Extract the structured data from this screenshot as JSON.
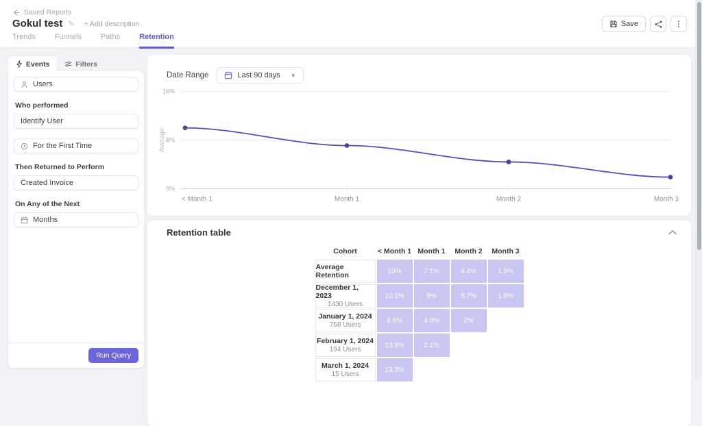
{
  "header": {
    "back_label": "Saved Reports",
    "title": "Gokul test",
    "add_description": "+ Add description",
    "tabs": [
      {
        "label": "Trends",
        "active": false
      },
      {
        "label": "Funnels",
        "active": false
      },
      {
        "label": "Paths",
        "active": false
      },
      {
        "label": "Retention",
        "active": true
      }
    ],
    "save_label": "Save"
  },
  "query_panel": {
    "events_tab": "Events",
    "filters_tab": "Filters",
    "users_label": "Users",
    "who_performed_label": "Who performed",
    "identify_user_value": "Identify User",
    "first_time_value": "For the First Time",
    "then_returned_label": "Then Returned to Perform",
    "return_event_value": "Created Invoice",
    "on_any_label": "On Any of the Next",
    "interval_value": "Months",
    "run_query_label": "Run Query"
  },
  "chart_card": {
    "date_range_label": "Date Range",
    "date_range_value": "Last 90 days"
  },
  "chart_data": {
    "type": "line",
    "ylabel": "Average",
    "categories": [
      "< Month 1",
      "Month 1",
      "Month 2",
      "Month 3"
    ],
    "values": [
      10,
      7.1,
      4.4,
      1.9
    ],
    "yticks": [
      {
        "label": "16%",
        "value": 16
      },
      {
        "label": "8%",
        "value": 8
      },
      {
        "label": "0%",
        "value": 0
      }
    ],
    "ylim": [
      0,
      16
    ],
    "grid": true,
    "line_color": "#514fb8",
    "point_color": "#46449f"
  },
  "retention_table": {
    "title": "Retention table",
    "columns": [
      "Cohort",
      "< Month 1",
      "Month 1",
      "Month 2",
      "Month 3"
    ],
    "cell_color": "#c9c7f2",
    "rows": [
      {
        "cohort": "Average Retention",
        "subtitle": "",
        "values": [
          "10%",
          "7.1%",
          "4.4%",
          "1.9%"
        ]
      },
      {
        "cohort": "December 1, 2023",
        "subtitle": "1430 Users",
        "values": [
          "10.1%",
          "9%",
          "5.7%",
          "1.9%"
        ]
      },
      {
        "cohort": "January 1, 2024",
        "subtitle": "758 Users",
        "values": [
          "8.6%",
          "4.9%",
          "2%"
        ]
      },
      {
        "cohort": "February 1, 2024",
        "subtitle": "194 Users",
        "values": [
          "13.9%",
          "2.1%"
        ]
      },
      {
        "cohort": "March 1, 2024",
        "subtitle": "15 Users",
        "values": [
          "13.3%"
        ]
      }
    ]
  },
  "theme": {
    "accent": "#5e59d6",
    "run_button": "#6b66dc",
    "page_bg": "#f2f3f6"
  }
}
